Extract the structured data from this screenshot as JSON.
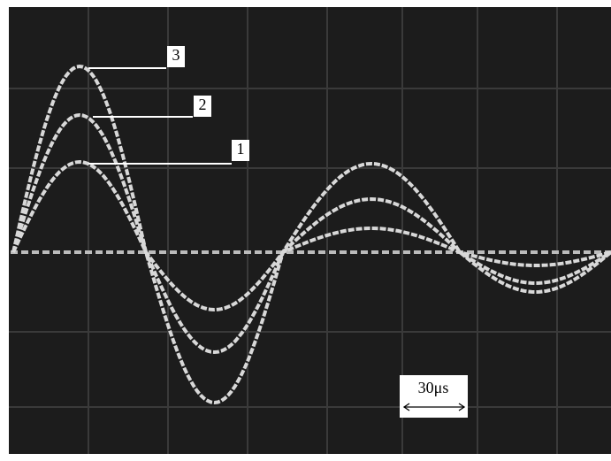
{
  "trace_labels": [
    "3",
    "2",
    "1"
  ],
  "scale_label": "30μs"
}
